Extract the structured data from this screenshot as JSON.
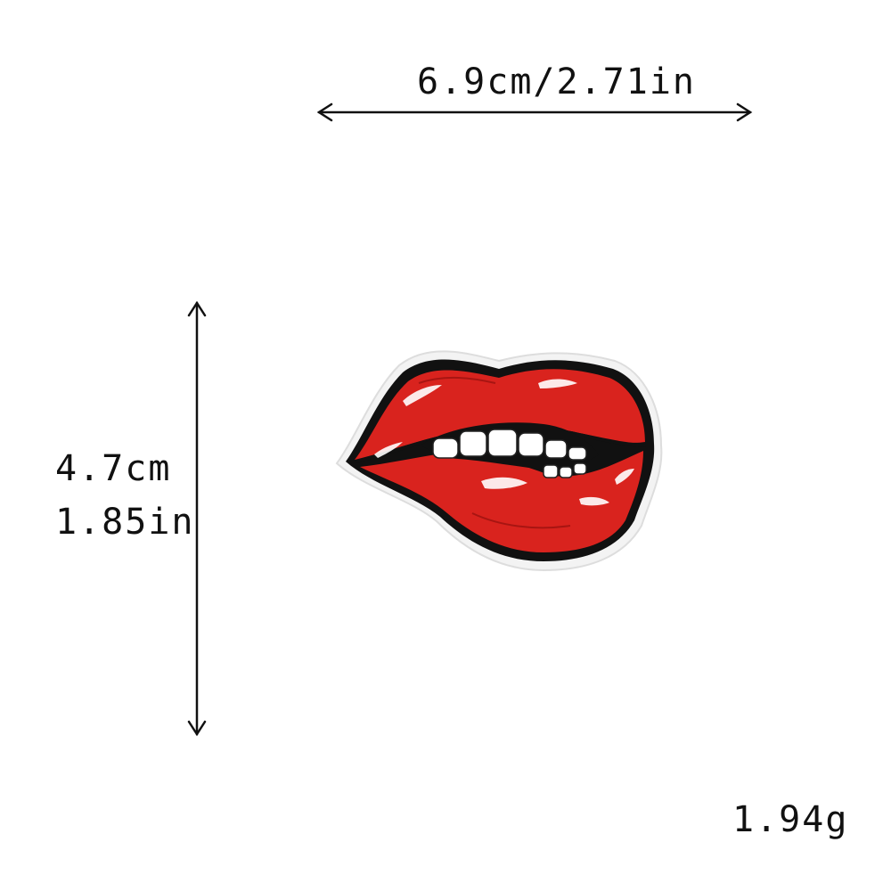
{
  "dimensions": {
    "width_label": "6.9cm/2.71in",
    "height_cm": "4.7cm",
    "height_in": "1.85in",
    "weight": "1.94g"
  },
  "colors": {
    "lip_red": "#d9231e",
    "lip_dark": "#a81512",
    "outline": "#111111",
    "teeth": "#ffffff",
    "patch_border": "#f3f3f3"
  },
  "image": {
    "subject": "lips-biting-patch"
  }
}
